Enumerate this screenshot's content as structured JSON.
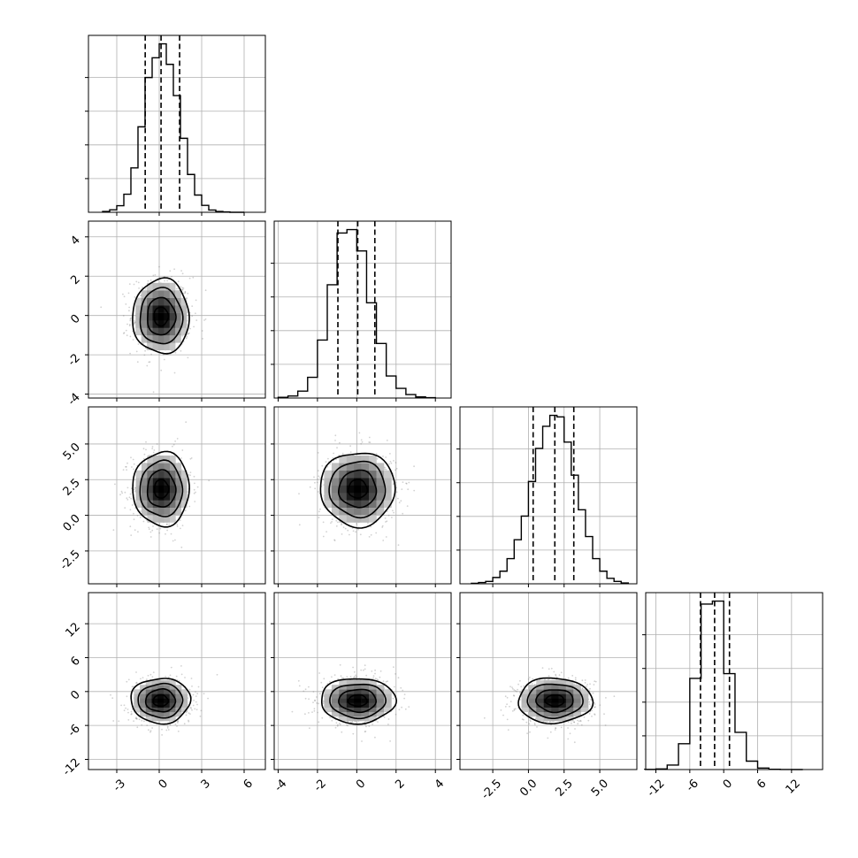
{
  "chart_data": {
    "type": "corner",
    "parameters": 4,
    "samples_shown": "scatter + 2D density + contours",
    "histograms": [
      {
        "edges": [
          -4,
          -3.5,
          -3,
          -2.5,
          -2,
          -1.5,
          -1,
          -0.5,
          0,
          0.5,
          1,
          1.5,
          2,
          2.5,
          3,
          3.5,
          4,
          4.5,
          5,
          5.5,
          6
        ],
        "counts": [
          5,
          15,
          40,
          110,
          270,
          520,
          820,
          940,
          1025,
          900,
          710,
          450,
          230,
          105,
          42,
          14,
          5,
          2,
          0,
          0
        ],
        "quantiles": [
          -0.99,
          0.13,
          1.44
        ],
        "xlim": [
          -5,
          7.5
        ]
      },
      {
        "edges": [
          -4,
          -3.5,
          -3,
          -2.5,
          -2,
          -1.5,
          -1,
          -0.5,
          0,
          0.5,
          1,
          1.5,
          2,
          2.5,
          3,
          3.5,
          4
        ],
        "counts": [
          5,
          15,
          50,
          150,
          420,
          820,
          1195,
          1220,
          1065,
          690,
          395,
          160,
          70,
          25,
          8,
          3
        ],
        "quantiles": [
          -0.96,
          0.05,
          0.92
        ],
        "xlim": [
          -4.2,
          4.8
        ]
      },
      {
        "edges": [
          -4,
          -3.5,
          -3,
          -2.5,
          -2,
          -1.5,
          -1,
          -0.5,
          0,
          0.5,
          1,
          1.5,
          2,
          2.5,
          3,
          3.5,
          4,
          4.5,
          5,
          5.5,
          6,
          6.5,
          7
        ],
        "counts": [
          3,
          8,
          15,
          40,
          80,
          160,
          280,
          430,
          650,
          860,
          1000,
          1070,
          1060,
          900,
          690,
          470,
          300,
          160,
          80,
          35,
          15,
          5
        ],
        "quantiles": [
          0.33,
          1.85,
          3.18
        ],
        "xlim": [
          -4.8,
          7.6
        ]
      },
      {
        "edges": [
          -14,
          -12,
          -10,
          -8,
          -6,
          -4,
          -2,
          0,
          2,
          4,
          6,
          8,
          10,
          12,
          14
        ],
        "counts": [
          2,
          10,
          75,
          430,
          1520,
          2760,
          2810,
          1600,
          620,
          140,
          25,
          5,
          1,
          0
        ],
        "quantiles": [
          -4.11,
          -1.61,
          1.02
        ],
        "xlim": [
          -13.8,
          17.5
        ]
      }
    ],
    "pairs": [
      {
        "row": 1,
        "col": 0,
        "center": [
          0.13,
          -0.05
        ],
        "sd": [
          1.0,
          0.95
        ]
      },
      {
        "row": 2,
        "col": 0,
        "center": [
          0.15,
          1.85
        ],
        "sd": [
          1.0,
          1.3
        ]
      },
      {
        "row": 2,
        "col": 1,
        "center": [
          0.05,
          1.85
        ],
        "sd": [
          0.95,
          1.3
        ]
      },
      {
        "row": 3,
        "col": 0,
        "center": [
          0.1,
          -1.6
        ],
        "sd": [
          1.05,
          2.0
        ]
      },
      {
        "row": 3,
        "col": 1,
        "center": [
          0.05,
          -1.6
        ],
        "sd": [
          0.95,
          2.0
        ]
      },
      {
        "row": 3,
        "col": 2,
        "center": [
          1.85,
          -1.6
        ],
        "sd": [
          1.3,
          2.0
        ]
      }
    ],
    "axes": {
      "x_ticks": [
        [
          "-3",
          "0",
          "3",
          "6"
        ],
        [
          "-4",
          "-2",
          "0",
          "2",
          "4"
        ],
        [
          "-2.5",
          "0.0",
          "2.5",
          "5.0"
        ],
        [
          "-12",
          "-6",
          "0",
          "6",
          "12"
        ]
      ],
      "y_ticks": [
        [],
        [
          "4",
          "2",
          "0",
          "-2",
          "-4"
        ],
        [
          "5.0",
          "2.5",
          "0.0",
          "-2.5"
        ],
        [
          "12",
          "6",
          "0",
          "-6",
          "-12"
        ]
      ]
    },
    "grid": true,
    "colors": {
      "line": "#000000",
      "grid": "#b0b0b0",
      "points": "#7f7f7f"
    }
  }
}
